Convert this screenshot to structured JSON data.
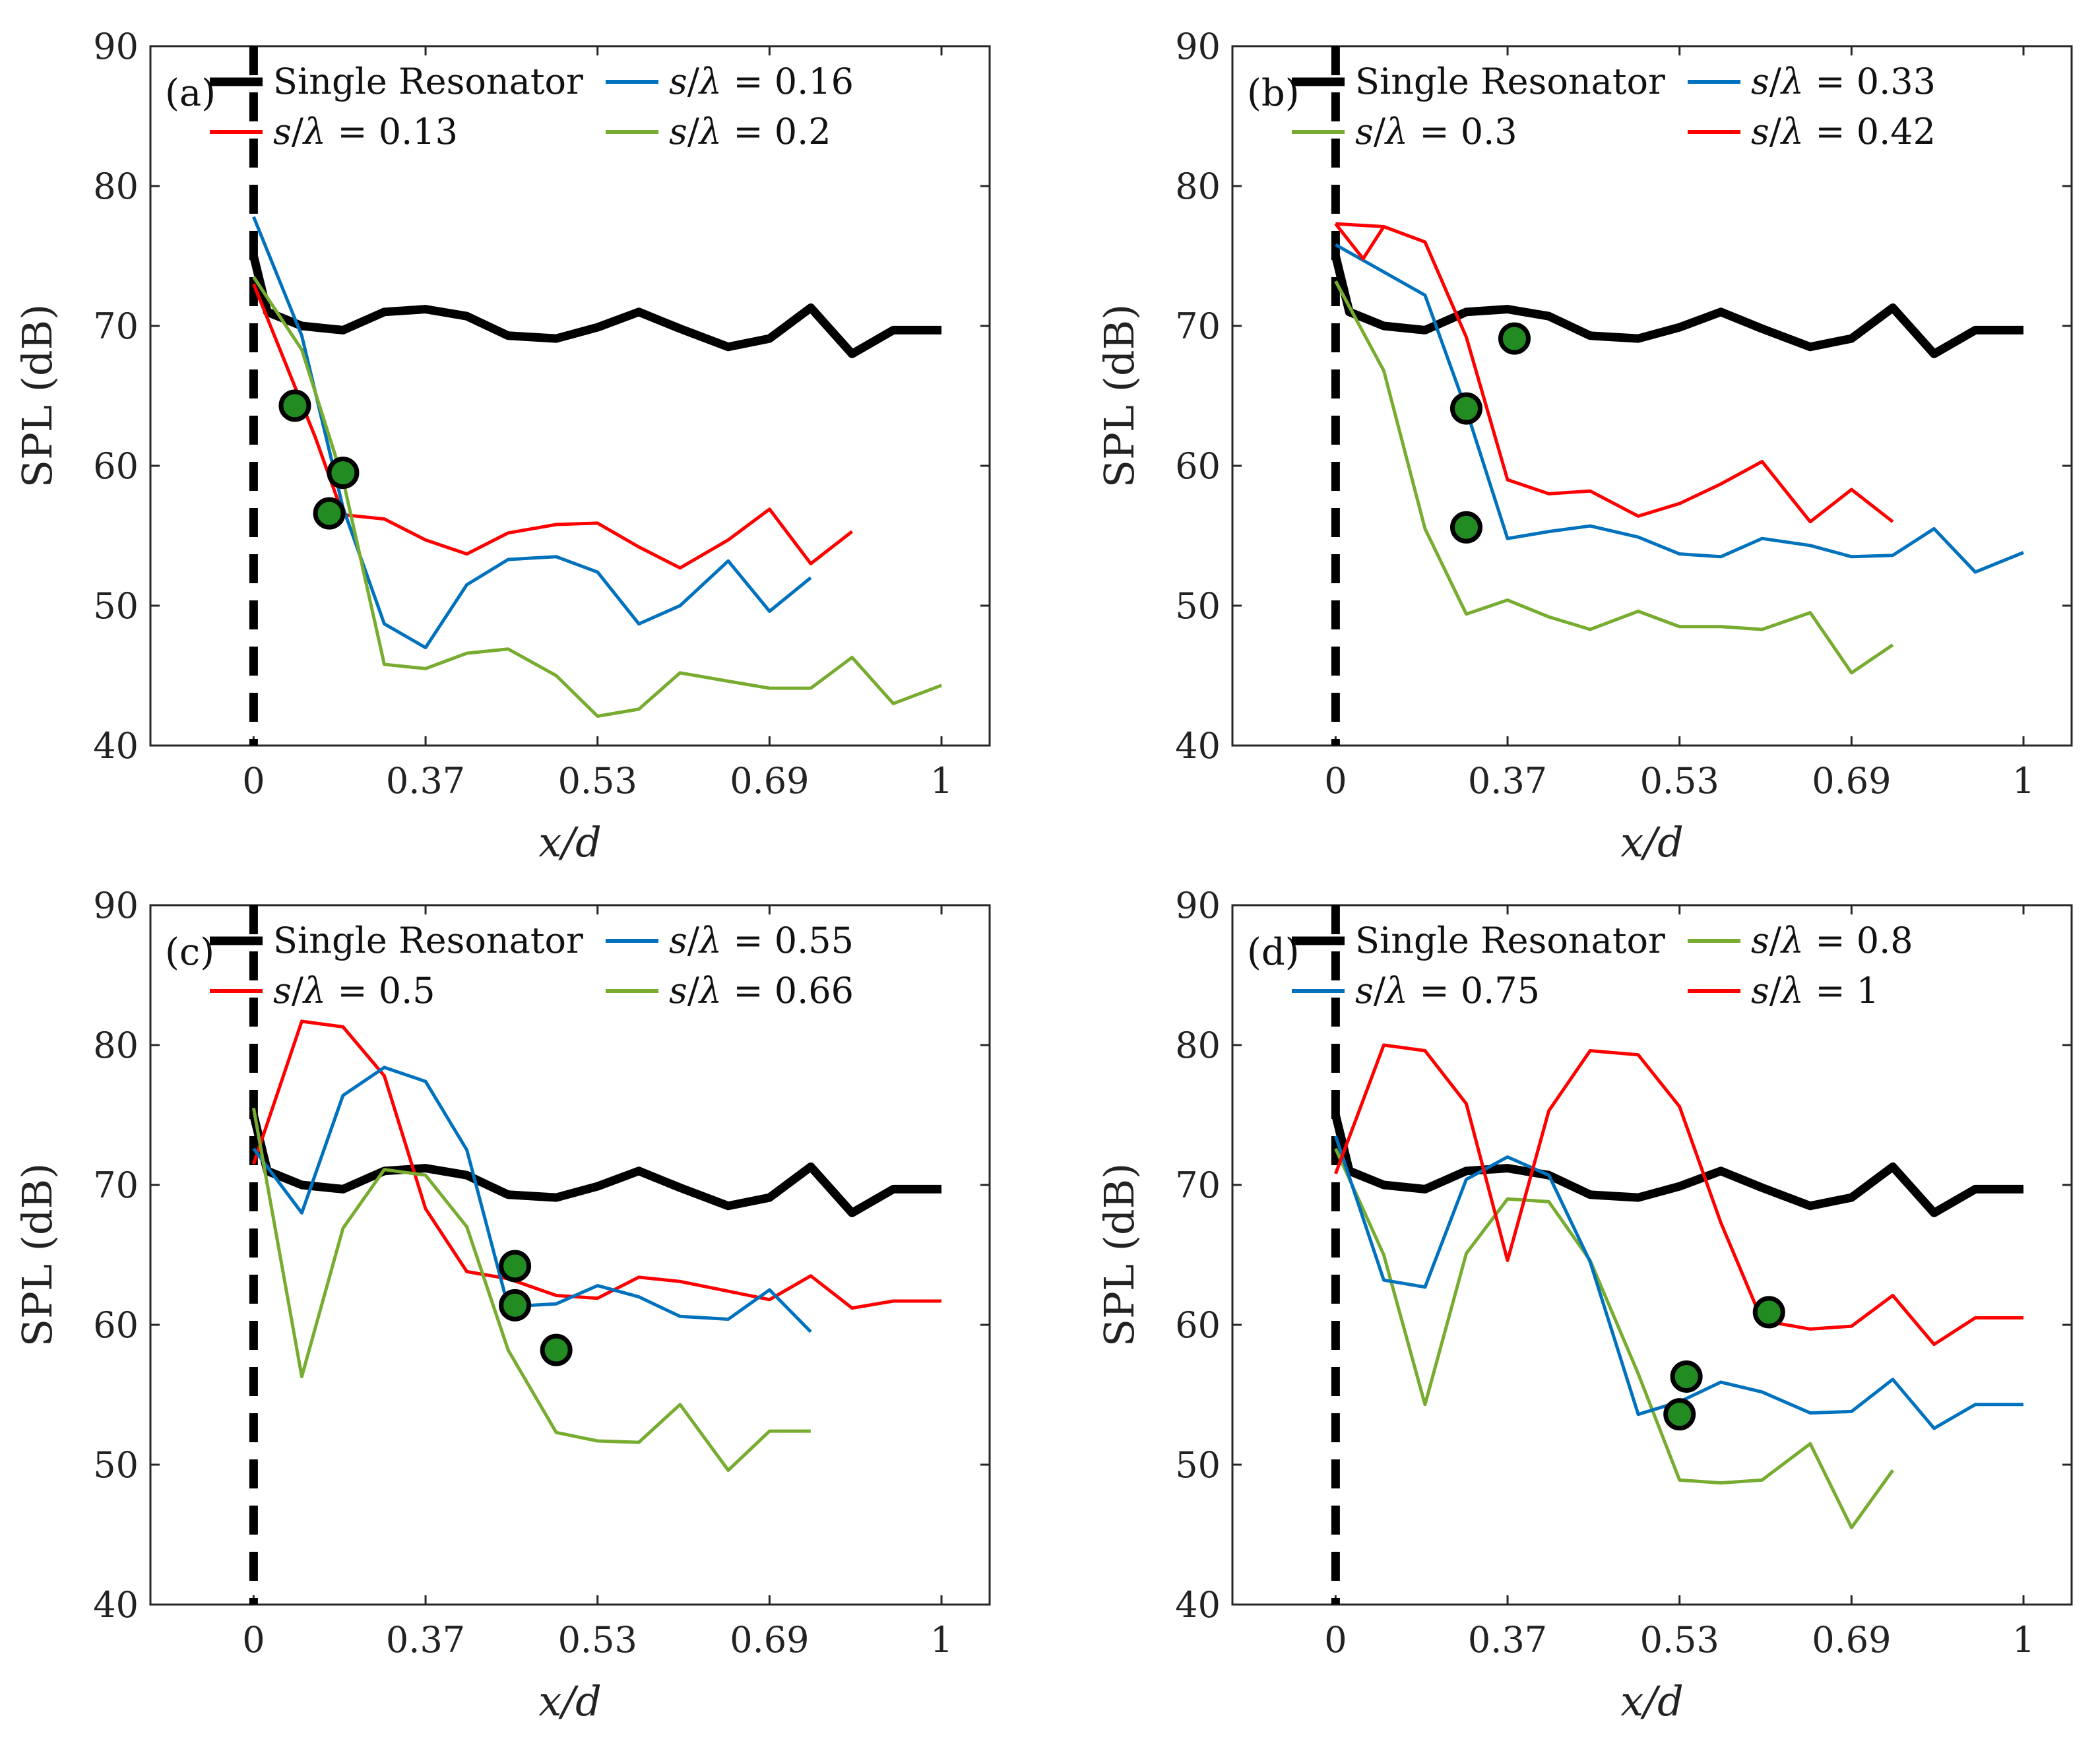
{
  "chart_data": [
    {
      "type": "line",
      "panel_label": "(a)",
      "xlabel": "x/d",
      "ylabel": "SPL (dB)",
      "xlim": [
        -0.15,
        1.07
      ],
      "ylim": [
        40,
        90
      ],
      "x_ticks": [
        {
          "v": 0,
          "label": "0"
        },
        {
          "v": 0.25,
          "label": "0.37"
        },
        {
          "v": 0.5,
          "label": "0.53"
        },
        {
          "v": 0.75,
          "label": "0.69"
        },
        {
          "v": 1,
          "label": "1"
        }
      ],
      "y_ticks": [
        40,
        50,
        60,
        70,
        80,
        90
      ],
      "vline_x": 0,
      "series": [
        {
          "name": "Single Resonator",
          "color": "#000000",
          "width": 13,
          "legend_slot": 0,
          "x": [
            0,
            0.02,
            0.07,
            0.13,
            0.19,
            0.25,
            0.31,
            0.37,
            0.44,
            0.5,
            0.56,
            0.62,
            0.69,
            0.75,
            0.81,
            0.87,
            0.93,
            1.0
          ],
          "y": [
            75,
            71.0,
            70.0,
            69.7,
            71.0,
            71.2,
            70.7,
            69.3,
            69.1,
            69.9,
            71.0,
            69.8,
            68.5,
            69.1,
            71.3,
            68.0,
            69.7,
            69.7
          ]
        },
        {
          "name": "s/λ = 0.13",
          "color": "#ff0000",
          "width": 5,
          "legend_slot": 1,
          "x": [
            0,
            0.09,
            0.13,
            0.19,
            0.25,
            0.31,
            0.37,
            0.44,
            0.5,
            0.56,
            0.62,
            0.69,
            0.75,
            0.81,
            0.87
          ],
          "y": [
            73,
            62.0,
            56.5,
            56.2,
            54.7,
            53.7,
            55.2,
            55.8,
            55.9,
            54.2,
            52.7,
            54.7,
            56.9,
            53.0,
            55.3
          ]
        },
        {
          "name": "s/λ = 0.16",
          "color": "#0072bd",
          "width": 5,
          "legend_slot": 2,
          "x": [
            0,
            0.07,
            0.13,
            0.19,
            0.25,
            0.31,
            0.37,
            0.44,
            0.5,
            0.56,
            0.62,
            0.69,
            0.75,
            0.81
          ],
          "y": [
            77.8,
            69.3,
            57.0,
            48.7,
            47.0,
            51.5,
            53.3,
            53.5,
            52.4,
            48.7,
            50.0,
            53.2,
            49.6,
            52.0
          ]
        },
        {
          "name": "s/λ = 0.2",
          "color": "#77ac30",
          "width": 5,
          "legend_slot": 3,
          "x": [
            0,
            0.07,
            0.13,
            0.19,
            0.25,
            0.31,
            0.37,
            0.44,
            0.5,
            0.56,
            0.62,
            0.69,
            0.75,
            0.81,
            0.87,
            0.93,
            1.0
          ],
          "y": [
            73.5,
            68.3,
            59.0,
            45.8,
            45.5,
            46.6,
            46.9,
            45.0,
            42.1,
            42.6,
            45.2,
            44.6,
            44.1,
            44.1,
            46.3,
            43.0,
            44.3
          ]
        }
      ],
      "markers": [
        {
          "x": 0.06,
          "y": 64.3
        },
        {
          "x": 0.11,
          "y": 56.6
        },
        {
          "x": 0.13,
          "y": 59.5
        }
      ]
    },
    {
      "type": "line",
      "panel_label": "(b)",
      "xlabel": "x/d",
      "ylabel": "SPL (dB)",
      "xlim": [
        -0.15,
        1.07
      ],
      "ylim": [
        40,
        90
      ],
      "x_ticks": [
        {
          "v": 0,
          "label": "0"
        },
        {
          "v": 0.25,
          "label": "0.37"
        },
        {
          "v": 0.5,
          "label": "0.53"
        },
        {
          "v": 0.75,
          "label": "0.69"
        },
        {
          "v": 1,
          "label": "1"
        }
      ],
      "y_ticks": [
        40,
        50,
        60,
        70,
        80,
        90
      ],
      "vline_x": 0,
      "series": [
        {
          "name": "Single Resonator",
          "color": "#000000",
          "width": 13,
          "legend_slot": 0,
          "x": [
            0,
            0.02,
            0.07,
            0.13,
            0.19,
            0.25,
            0.31,
            0.37,
            0.44,
            0.5,
            0.56,
            0.62,
            0.69,
            0.75,
            0.81,
            0.87,
            0.93,
            1.0
          ],
          "y": [
            75,
            71.0,
            70.0,
            69.7,
            71.0,
            71.2,
            70.7,
            69.3,
            69.1,
            69.9,
            71.0,
            69.8,
            68.5,
            69.1,
            71.3,
            68.0,
            69.7,
            69.7
          ]
        },
        {
          "name": "s/λ = 0.3",
          "color": "#77ac30",
          "width": 5,
          "legend_slot": 1,
          "x": [
            0,
            0.07,
            0.13,
            0.19,
            0.25,
            0.31,
            0.37,
            0.44,
            0.5,
            0.56,
            0.62,
            0.69,
            0.75,
            0.81
          ],
          "y": [
            73.2,
            66.8,
            55.5,
            49.4,
            50.4,
            49.2,
            48.3,
            49.6,
            48.5,
            48.5,
            48.3,
            49.5,
            45.2,
            47.2
          ]
        },
        {
          "name": "s/λ = 0.33",
          "color": "#0072bd",
          "width": 5,
          "legend_slot": 2,
          "x": [
            0,
            0.13,
            0.19,
            0.25,
            0.31,
            0.37,
            0.44,
            0.5,
            0.56,
            0.62,
            0.69,
            0.75,
            0.81,
            0.87,
            0.93,
            1.0
          ],
          "y": [
            75.8,
            72.2,
            64.0,
            54.8,
            55.3,
            55.7,
            54.9,
            53.7,
            53.5,
            54.8,
            54.3,
            53.5,
            53.6,
            55.5,
            52.4,
            53.8
          ]
        },
        {
          "name": "s/λ = 0.42",
          "color": "#ff0000",
          "width": 5,
          "legend_slot": 3,
          "x": [
            0,
            0.07,
            0.13,
            0.19,
            0.25,
            0.31,
            0.37,
            0.44,
            0.5,
            0.56,
            0.62,
            0.69,
            0.75,
            0.81
          ],
          "y": [
            77.3,
            77.1,
            76.0,
            69.2,
            59.0,
            58.0,
            58.2,
            56.4,
            57.3,
            58.7,
            60.3,
            56.0,
            58.3,
            56.0
          ]
        },
        {
          "name": "",
          "color": "#ff0000",
          "width": 5,
          "legend_slot": -1,
          "x": [
            0,
            0.04,
            0.07
          ],
          "y": [
            77.3,
            74.8,
            77.1
          ]
        }
      ],
      "markers": [
        {
          "x": 0.19,
          "y": 64.1
        },
        {
          "x": 0.19,
          "y": 55.6
        },
        {
          "x": 0.26,
          "y": 69.1
        }
      ]
    },
    {
      "type": "line",
      "panel_label": "(c)",
      "xlabel": "x/d",
      "ylabel": "SPL (dB)",
      "xlim": [
        -0.15,
        1.07
      ],
      "ylim": [
        40,
        90
      ],
      "x_ticks": [
        {
          "v": 0,
          "label": "0"
        },
        {
          "v": 0.25,
          "label": "0.37"
        },
        {
          "v": 0.5,
          "label": "0.53"
        },
        {
          "v": 0.75,
          "label": "0.69"
        },
        {
          "v": 1,
          "label": "1"
        }
      ],
      "y_ticks": [
        40,
        50,
        60,
        70,
        80,
        90
      ],
      "vline_x": 0,
      "series": [
        {
          "name": "Single Resonator",
          "color": "#000000",
          "width": 13,
          "legend_slot": 0,
          "x": [
            0,
            0.02,
            0.07,
            0.13,
            0.19,
            0.25,
            0.31,
            0.37,
            0.44,
            0.5,
            0.56,
            0.62,
            0.69,
            0.75,
            0.81,
            0.87,
            0.93,
            1.0
          ],
          "y": [
            75,
            71.0,
            70.0,
            69.7,
            71.0,
            71.2,
            70.7,
            69.3,
            69.1,
            69.9,
            71.0,
            69.8,
            68.5,
            69.1,
            71.3,
            68.0,
            69.7,
            69.7
          ]
        },
        {
          "name": "s/λ = 0.5",
          "color": "#ff0000",
          "width": 5,
          "legend_slot": 1,
          "x": [
            0,
            0.07,
            0.13,
            0.19,
            0.25,
            0.31,
            0.37,
            0.44,
            0.5,
            0.56,
            0.62,
            0.69,
            0.75,
            0.81,
            0.87,
            0.93,
            1.0
          ],
          "y": [
            71.5,
            81.7,
            81.3,
            77.8,
            68.3,
            63.8,
            63.3,
            62.1,
            61.9,
            63.4,
            63.1,
            62.4,
            61.8,
            63.5,
            61.2,
            61.7,
            61.7
          ]
        },
        {
          "name": "s/λ = 0.55",
          "color": "#0072bd",
          "width": 5,
          "legend_slot": 2,
          "x": [
            0,
            0.07,
            0.13,
            0.19,
            0.25,
            0.31,
            0.37,
            0.44,
            0.5,
            0.56,
            0.62,
            0.69,
            0.75,
            0.81
          ],
          "y": [
            72.6,
            68.0,
            76.4,
            78.4,
            77.4,
            72.5,
            61.3,
            61.5,
            62.8,
            62.0,
            60.6,
            60.4,
            62.5,
            59.5
          ]
        },
        {
          "name": "s/λ = 0.66",
          "color": "#77ac30",
          "width": 5,
          "legend_slot": 3,
          "x": [
            0,
            0.07,
            0.13,
            0.19,
            0.25,
            0.31,
            0.37,
            0.44,
            0.5,
            0.56,
            0.62,
            0.69,
            0.75,
            0.81
          ],
          "y": [
            75.5,
            56.3,
            66.9,
            71.1,
            70.7,
            67.0,
            58.2,
            52.3,
            51.7,
            51.6,
            54.3,
            49.6,
            52.4,
            52.4
          ]
        }
      ],
      "markers": [
        {
          "x": 0.38,
          "y": 64.2
        },
        {
          "x": 0.38,
          "y": 61.4
        },
        {
          "x": 0.44,
          "y": 58.2
        }
      ]
    },
    {
      "type": "line",
      "panel_label": "(d)",
      "xlabel": "x/d",
      "ylabel": "SPL (dB)",
      "xlim": [
        -0.15,
        1.07
      ],
      "ylim": [
        40,
        90
      ],
      "x_ticks": [
        {
          "v": 0,
          "label": "0"
        },
        {
          "v": 0.25,
          "label": "0.37"
        },
        {
          "v": 0.5,
          "label": "0.53"
        },
        {
          "v": 0.75,
          "label": "0.69"
        },
        {
          "v": 1,
          "label": "1"
        }
      ],
      "y_ticks": [
        40,
        50,
        60,
        70,
        80,
        90
      ],
      "vline_x": 0,
      "series": [
        {
          "name": "Single Resonator",
          "color": "#000000",
          "width": 13,
          "legend_slot": 0,
          "x": [
            0,
            0.02,
            0.07,
            0.13,
            0.19,
            0.25,
            0.31,
            0.37,
            0.44,
            0.5,
            0.56,
            0.62,
            0.69,
            0.75,
            0.81,
            0.87,
            0.93,
            1.0
          ],
          "y": [
            75,
            71.0,
            70.0,
            69.7,
            71.0,
            71.2,
            70.7,
            69.3,
            69.1,
            69.9,
            71.0,
            69.8,
            68.5,
            69.1,
            71.3,
            68.0,
            69.7,
            69.7
          ]
        },
        {
          "name": "s/λ = 0.8",
          "color": "#77ac30",
          "width": 5,
          "legend_slot": 2,
          "x": [
            0,
            0.07,
            0.13,
            0.19,
            0.25,
            0.31,
            0.37,
            0.44,
            0.5,
            0.56,
            0.62,
            0.69,
            0.75,
            0.81
          ],
          "y": [
            72.6,
            65.0,
            54.3,
            65.1,
            69.0,
            68.8,
            64.6,
            56.5,
            48.9,
            48.7,
            48.9,
            51.5,
            45.5,
            49.6
          ]
        },
        {
          "name": "s/λ = 0.75",
          "color": "#0072bd",
          "width": 5,
          "legend_slot": 1,
          "x": [
            0,
            0.07,
            0.13,
            0.19,
            0.25,
            0.31,
            0.37,
            0.44,
            0.5,
            0.56,
            0.62,
            0.69,
            0.75,
            0.81,
            0.87,
            0.93,
            1.0
          ],
          "y": [
            73.5,
            63.2,
            62.7,
            70.4,
            72.0,
            70.7,
            64.5,
            53.6,
            54.5,
            55.9,
            55.2,
            53.7,
            53.8,
            56.1,
            52.6,
            54.3,
            54.3
          ]
        },
        {
          "name": "s/λ = 1",
          "color": "#ff0000",
          "width": 5,
          "legend_slot": 3,
          "x": [
            0,
            0.07,
            0.13,
            0.19,
            0.25,
            0.31,
            0.37,
            0.44,
            0.5,
            0.56,
            0.62,
            0.69,
            0.75,
            0.81,
            0.87,
            0.93,
            1.0
          ],
          "y": [
            70.8,
            80.0,
            79.6,
            75.8,
            64.6,
            75.3,
            79.6,
            79.3,
            75.6,
            67.3,
            60.3,
            59.7,
            59.9,
            62.1,
            58.6,
            60.5,
            60.5
          ]
        }
      ],
      "markers": [
        {
          "x": 0.51,
          "y": 56.3
        },
        {
          "x": 0.5,
          "y": 53.6
        },
        {
          "x": 0.63,
          "y": 60.9
        }
      ]
    }
  ]
}
